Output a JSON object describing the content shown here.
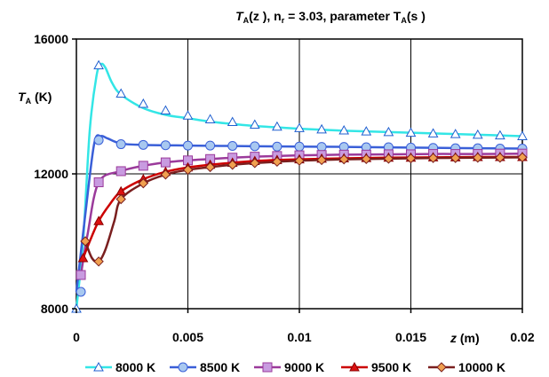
{
  "chart_data": {
    "type": "line",
    "title": {
      "base": "T",
      "base_sub": "A",
      "mid": "(z ), n",
      "mid_sub": "r",
      "rest": " = 3.03, parameter T",
      "rest_sub": "A",
      "tail": "(s )"
    },
    "ylabel": {
      "base": "T",
      "sub": "A",
      "unit": " (K)"
    },
    "xlabel": {
      "var": "z",
      "unit": " (m)"
    },
    "xlim": [
      0,
      0.02
    ],
    "ylim": [
      8000,
      16000
    ],
    "x_ticks": [
      {
        "value": 0,
        "label": "0"
      },
      {
        "value": 0.005,
        "label": "0.005"
      },
      {
        "value": 0.01,
        "label": "0.01"
      },
      {
        "value": 0.015,
        "label": "0.015"
      },
      {
        "value": 0.02,
        "label": "0.02"
      }
    ],
    "y_ticks": [
      {
        "value": 8000,
        "label": "8000"
      },
      {
        "value": 12000,
        "label": "12000"
      },
      {
        "value": 16000,
        "label": "16000"
      }
    ],
    "grid": {
      "vertical": true,
      "horizontal": true
    },
    "legend_position": "bottom",
    "series": [
      {
        "name": "8000 K",
        "color": "#33e6e6",
        "marker": "triangle",
        "marker_color": "#1f5fd0",
        "curve": [
          [
            0,
            8000
          ],
          [
            0.0003,
            10000
          ],
          [
            0.0006,
            13300
          ],
          [
            0.0009,
            14900
          ],
          [
            0.0011,
            15250
          ],
          [
            0.0013,
            15150
          ],
          [
            0.0016,
            14700
          ],
          [
            0.002,
            14350
          ],
          [
            0.003,
            13950
          ],
          [
            0.004,
            13750
          ],
          [
            0.005,
            13650
          ],
          [
            0.006,
            13550
          ],
          [
            0.007,
            13480
          ],
          [
            0.008,
            13420
          ],
          [
            0.009,
            13380
          ],
          [
            0.01,
            13340
          ],
          [
            0.011,
            13310
          ],
          [
            0.012,
            13280
          ],
          [
            0.013,
            13260
          ],
          [
            0.014,
            13240
          ],
          [
            0.015,
            13220
          ],
          [
            0.016,
            13200
          ],
          [
            0.017,
            13180
          ],
          [
            0.018,
            13160
          ],
          [
            0.019,
            13140
          ],
          [
            0.02,
            13120
          ]
        ],
        "points": [
          [
            0,
            8000
          ],
          [
            0.001,
            15220
          ],
          [
            0.002,
            14380
          ],
          [
            0.003,
            14080
          ],
          [
            0.004,
            13880
          ],
          [
            0.005,
            13730
          ],
          [
            0.006,
            13620
          ],
          [
            0.007,
            13540
          ],
          [
            0.008,
            13460
          ],
          [
            0.009,
            13400
          ],
          [
            0.01,
            13360
          ],
          [
            0.011,
            13320
          ],
          [
            0.012,
            13290
          ],
          [
            0.013,
            13260
          ],
          [
            0.014,
            13240
          ],
          [
            0.015,
            13220
          ],
          [
            0.016,
            13200
          ],
          [
            0.017,
            13180
          ],
          [
            0.018,
            13160
          ],
          [
            0.019,
            13140
          ],
          [
            0.02,
            13120
          ]
        ]
      },
      {
        "name": "8500 K",
        "color": "#3a5fd8",
        "marker": "circle",
        "marker_color": "#a8c8f0",
        "curve": [
          [
            0,
            8500
          ],
          [
            0.0004,
            10800
          ],
          [
            0.0008,
            12900
          ],
          [
            0.0011,
            13120
          ],
          [
            0.0014,
            13050
          ],
          [
            0.002,
            12900
          ],
          [
            0.003,
            12860
          ],
          [
            0.005,
            12840
          ],
          [
            0.008,
            12820
          ],
          [
            0.01,
            12810
          ],
          [
            0.012,
            12800
          ],
          [
            0.015,
            12780
          ],
          [
            0.018,
            12760
          ],
          [
            0.02,
            12750
          ]
        ],
        "points": [
          [
            0.0002,
            8500
          ],
          [
            0.001,
            13000
          ],
          [
            0.002,
            12880
          ],
          [
            0.003,
            12860
          ],
          [
            0.004,
            12850
          ],
          [
            0.005,
            12840
          ],
          [
            0.006,
            12840
          ],
          [
            0.007,
            12830
          ],
          [
            0.008,
            12820
          ],
          [
            0.009,
            12810
          ],
          [
            0.01,
            12810
          ],
          [
            0.011,
            12800
          ],
          [
            0.012,
            12800
          ],
          [
            0.013,
            12790
          ],
          [
            0.014,
            12790
          ],
          [
            0.015,
            12780
          ],
          [
            0.016,
            12770
          ],
          [
            0.017,
            12760
          ],
          [
            0.018,
            12760
          ],
          [
            0.019,
            12750
          ],
          [
            0.02,
            12750
          ]
        ]
      },
      {
        "name": "9000 K",
        "color": "#9b3a9b",
        "marker": "square",
        "marker_color": "#c89be0",
        "curve": [
          [
            0.0002,
            9000
          ],
          [
            0.0005,
            10200
          ],
          [
            0.001,
            11750
          ],
          [
            0.002,
            12080
          ],
          [
            0.003,
            12240
          ],
          [
            0.004,
            12340
          ],
          [
            0.005,
            12400
          ],
          [
            0.006,
            12440
          ],
          [
            0.007,
            12480
          ],
          [
            0.008,
            12510
          ],
          [
            0.009,
            12530
          ],
          [
            0.01,
            12550
          ],
          [
            0.012,
            12570
          ],
          [
            0.014,
            12580
          ],
          [
            0.016,
            12590
          ],
          [
            0.018,
            12590
          ],
          [
            0.02,
            12600
          ]
        ],
        "points": [
          [
            0.0002,
            9000
          ],
          [
            0.001,
            11750
          ],
          [
            0.002,
            12080
          ],
          [
            0.003,
            12240
          ],
          [
            0.004,
            12340
          ],
          [
            0.005,
            12400
          ],
          [
            0.006,
            12440
          ],
          [
            0.007,
            12480
          ],
          [
            0.008,
            12510
          ],
          [
            0.009,
            12530
          ],
          [
            0.01,
            12550
          ],
          [
            0.011,
            12560
          ],
          [
            0.012,
            12570
          ],
          [
            0.013,
            12570
          ],
          [
            0.014,
            12580
          ],
          [
            0.015,
            12580
          ],
          [
            0.016,
            12590
          ],
          [
            0.017,
            12590
          ],
          [
            0.018,
            12590
          ],
          [
            0.019,
            12600
          ],
          [
            0.02,
            12600
          ]
        ]
      },
      {
        "name": "9500 K",
        "color": "#cc0000",
        "marker": "triangle-filled",
        "marker_color": "#dd1111",
        "curve": [
          [
            0.0003,
            9500
          ],
          [
            0.0006,
            10000
          ],
          [
            0.001,
            10600
          ],
          [
            0.0015,
            11100
          ],
          [
            0.002,
            11480
          ],
          [
            0.003,
            11840
          ],
          [
            0.004,
            12060
          ],
          [
            0.005,
            12190
          ],
          [
            0.006,
            12270
          ],
          [
            0.007,
            12330
          ],
          [
            0.008,
            12380
          ],
          [
            0.009,
            12410
          ],
          [
            0.01,
            12430
          ],
          [
            0.012,
            12460
          ],
          [
            0.014,
            12480
          ],
          [
            0.016,
            12490
          ],
          [
            0.018,
            12500
          ],
          [
            0.02,
            12500
          ]
        ],
        "points": [
          [
            0.0003,
            9500
          ],
          [
            0.001,
            10600
          ],
          [
            0.002,
            11480
          ],
          [
            0.003,
            11840
          ],
          [
            0.004,
            12060
          ],
          [
            0.005,
            12190
          ],
          [
            0.006,
            12270
          ],
          [
            0.007,
            12330
          ],
          [
            0.008,
            12380
          ],
          [
            0.009,
            12410
          ],
          [
            0.01,
            12430
          ],
          [
            0.011,
            12450
          ],
          [
            0.012,
            12460
          ],
          [
            0.013,
            12470
          ],
          [
            0.014,
            12480
          ],
          [
            0.015,
            12480
          ],
          [
            0.016,
            12490
          ],
          [
            0.017,
            12490
          ],
          [
            0.018,
            12500
          ],
          [
            0.019,
            12500
          ],
          [
            0.02,
            12500
          ]
        ]
      },
      {
        "name": "10000 K",
        "color": "#7a1f1f",
        "marker": "diamond",
        "marker_color": "#f0a050",
        "curve": [
          [
            0.0004,
            10000
          ],
          [
            0.0007,
            9500
          ],
          [
            0.001,
            9400
          ],
          [
            0.0013,
            9750
          ],
          [
            0.0017,
            10600
          ],
          [
            0.002,
            11250
          ],
          [
            0.003,
            11720
          ],
          [
            0.004,
            11980
          ],
          [
            0.005,
            12120
          ],
          [
            0.006,
            12200
          ],
          [
            0.007,
            12270
          ],
          [
            0.008,
            12320
          ],
          [
            0.009,
            12360
          ],
          [
            0.01,
            12390
          ],
          [
            0.012,
            12430
          ],
          [
            0.014,
            12450
          ],
          [
            0.016,
            12470
          ],
          [
            0.018,
            12480
          ],
          [
            0.02,
            12490
          ]
        ],
        "points": [
          [
            0.0004,
            10000
          ],
          [
            0.001,
            9400
          ],
          [
            0.002,
            11250
          ],
          [
            0.003,
            11720
          ],
          [
            0.004,
            11980
          ],
          [
            0.005,
            12120
          ],
          [
            0.006,
            12200
          ],
          [
            0.007,
            12270
          ],
          [
            0.008,
            12320
          ],
          [
            0.009,
            12360
          ],
          [
            0.01,
            12390
          ],
          [
            0.011,
            12410
          ],
          [
            0.012,
            12430
          ],
          [
            0.013,
            12440
          ],
          [
            0.014,
            12450
          ],
          [
            0.015,
            12460
          ],
          [
            0.016,
            12470
          ],
          [
            0.017,
            12470
          ],
          [
            0.018,
            12480
          ],
          [
            0.019,
            12480
          ],
          [
            0.02,
            12490
          ]
        ]
      }
    ]
  }
}
